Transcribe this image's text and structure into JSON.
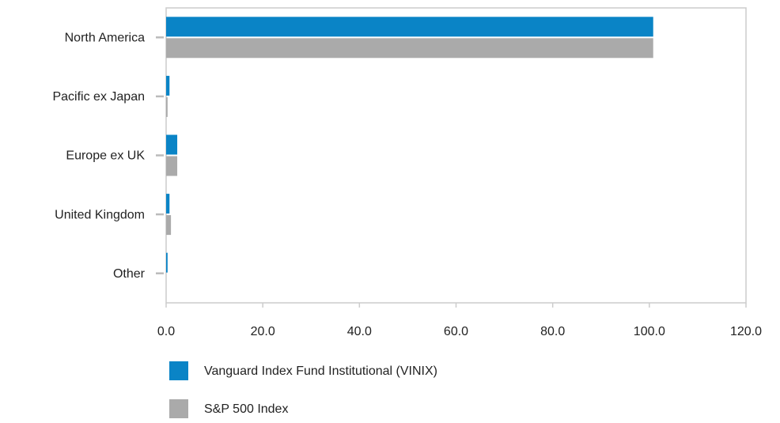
{
  "chart_data": {
    "type": "barh",
    "categories": [
      "North America",
      "Pacific ex Japan",
      "Europe ex UK",
      "United Kingdom",
      "Other"
    ],
    "series": [
      {
        "name": "Vanguard Index Fund Institutional (VINIX)",
        "color": "#0a84c6",
        "values": [
          100.8,
          0.7,
          2.3,
          0.7,
          0.3
        ]
      },
      {
        "name": "S&P 500 Index",
        "color": "#aaaaaa",
        "values": [
          100.8,
          0.3,
          2.3,
          1.0,
          0.0
        ]
      }
    ],
    "xlim": [
      0,
      120
    ],
    "xticks": [
      {
        "value": 0,
        "label": "0.0"
      },
      {
        "value": 20,
        "label": "20.0"
      },
      {
        "value": 40,
        "label": "40.0"
      },
      {
        "value": 60,
        "label": "60.0"
      },
      {
        "value": 80,
        "label": "80.0"
      },
      {
        "value": 100,
        "label": "100.0"
      },
      {
        "value": 120,
        "label": "120.0"
      }
    ],
    "legend": "bottom"
  }
}
